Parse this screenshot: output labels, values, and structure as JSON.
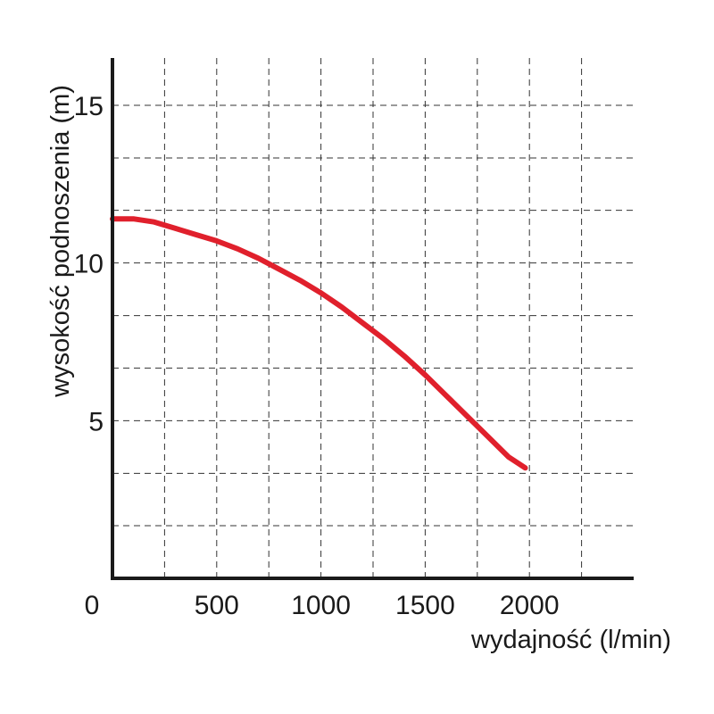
{
  "chart_data": {
    "type": "line",
    "xlabel": "wydajność (l/min)",
    "ylabel": "wysokość podnoszenia (m)",
    "xlim": [
      0,
      2500
    ],
    "ylim": [
      0,
      16.5
    ],
    "x_ticks": [
      {
        "value": 0,
        "label": "0"
      },
      {
        "value": 500,
        "label": "500"
      },
      {
        "value": 1000,
        "label": "1000"
      },
      {
        "value": 1500,
        "label": "1500"
      },
      {
        "value": 2000,
        "label": "2000"
      }
    ],
    "y_ticks": [
      {
        "value": 5,
        "label": "5"
      },
      {
        "value": 10,
        "label": "10"
      },
      {
        "value": 15,
        "label": "15"
      }
    ],
    "x_grid": [
      250,
      500,
      750,
      1000,
      1250,
      1500,
      1750,
      2000,
      2250
    ],
    "y_grid": [
      1.67,
      3.33,
      5,
      6.67,
      8.33,
      10,
      11.67,
      13.33,
      15
    ],
    "grid": true,
    "series": [
      {
        "color": "#e0202c",
        "x": [
          0,
          100,
          200,
          300,
          400,
          500,
          600,
          700,
          800,
          900,
          1000,
          1100,
          1200,
          1300,
          1400,
          1500,
          1600,
          1700,
          1800,
          1900,
          1980
        ],
        "y": [
          11.4,
          11.4,
          11.3,
          11.1,
          10.9,
          10.7,
          10.45,
          10.15,
          9.8,
          9.45,
          9.05,
          8.6,
          8.1,
          7.6,
          7.05,
          6.45,
          5.8,
          5.15,
          4.5,
          3.85,
          3.5
        ]
      }
    ]
  }
}
